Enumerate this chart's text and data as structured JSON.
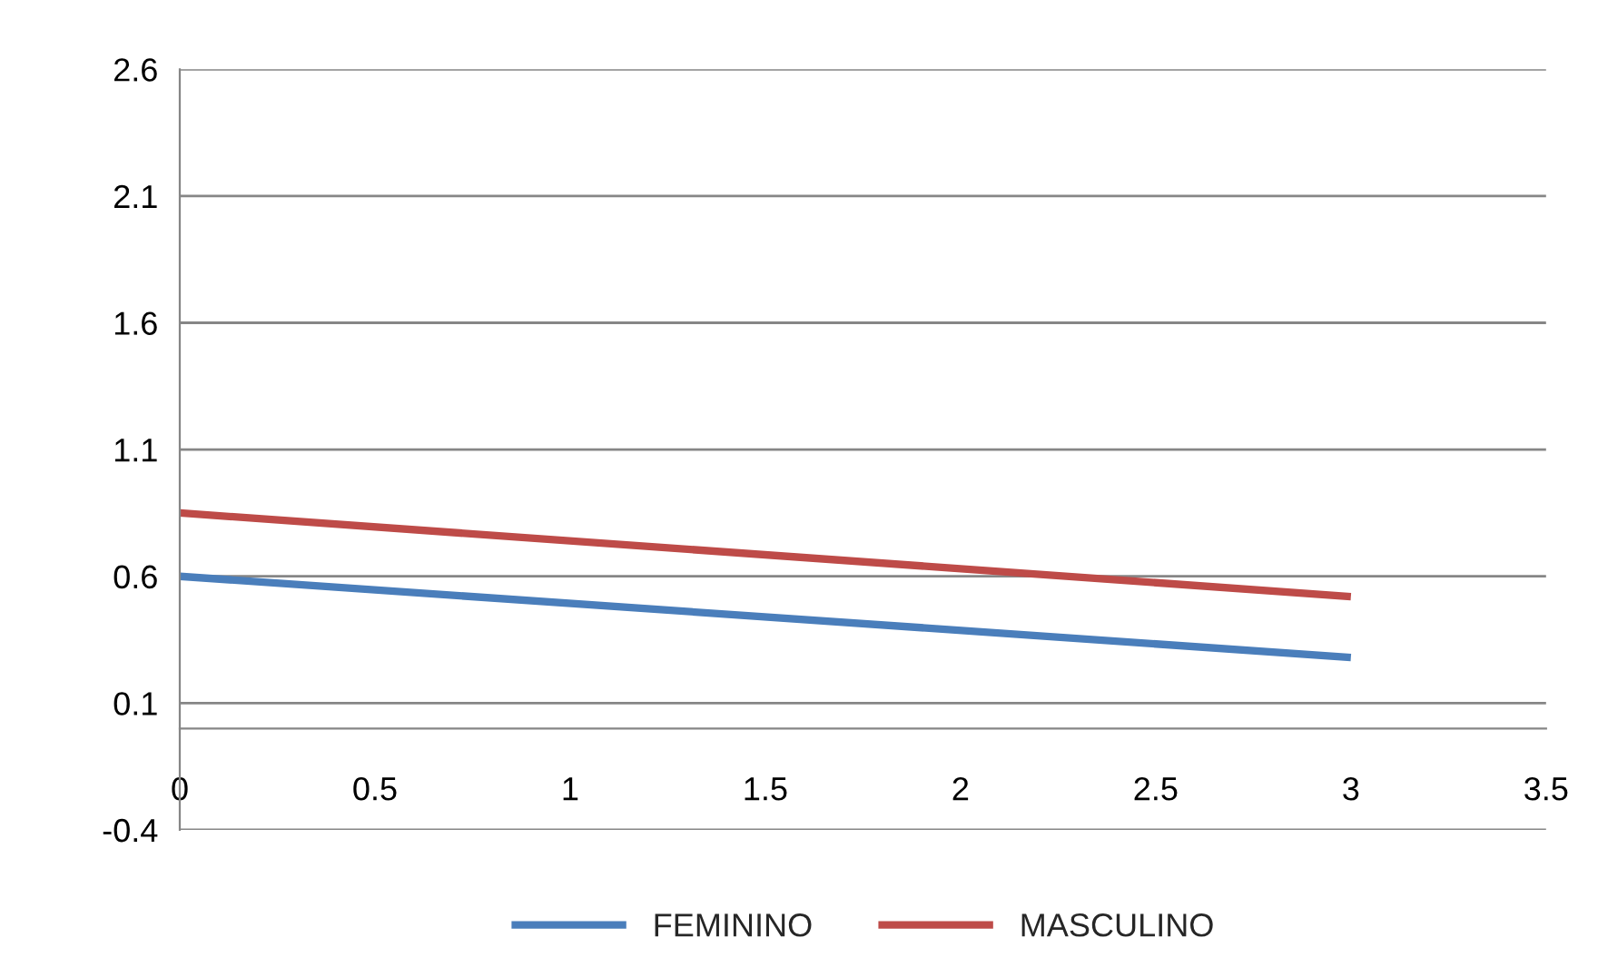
{
  "chart_data": {
    "type": "line",
    "x": [
      0,
      3
    ],
    "series": [
      {
        "name": "FEMININO",
        "color": "#4a7ebb",
        "values": [
          0.6,
          0.28
        ]
      },
      {
        "name": "MASCULINO",
        "color": "#be4b48",
        "values": [
          0.85,
          0.52
        ]
      }
    ],
    "xlim": [
      0,
      3.5
    ],
    "xticks": [
      0,
      0.5,
      1,
      1.5,
      2,
      2.5,
      3,
      3.5
    ],
    "ylim": [
      -0.4,
      2.6
    ],
    "yticks": [
      -0.4,
      0.1,
      0.6,
      1.1,
      1.6,
      2.1,
      2.6
    ],
    "grid": "y",
    "legend": "bottom",
    "marker": "none",
    "line_style": "solid"
  }
}
